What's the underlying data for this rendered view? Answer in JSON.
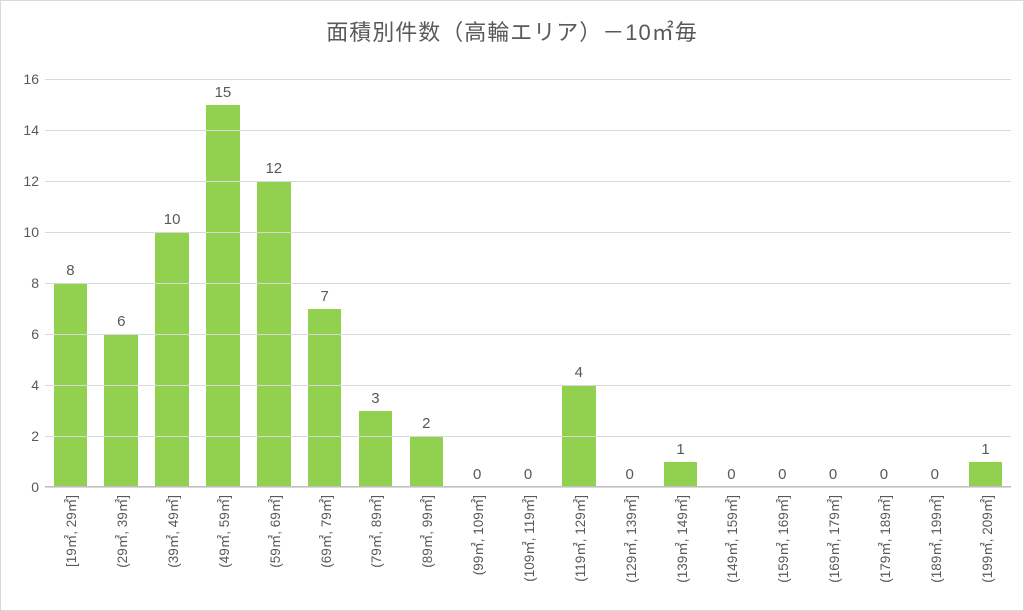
{
  "chart": {
    "type": "bar",
    "title": "面積別件数（高輪エリア）－10㎡毎",
    "title_fontsize": 22,
    "title_color": "#595959",
    "background_color": "#ffffff",
    "border_color": "#d9d9d9",
    "bar_color": "#92d050",
    "grid_color": "#d9d9d9",
    "axis_color": "#bfbfbf",
    "label_color": "#595959",
    "label_fontsize": 14,
    "value_label_fontsize": 15,
    "xtick_fontsize": 13.5,
    "xtick_rotation_deg": -90,
    "bar_width_ratio": 0.66,
    "ylim": [
      0,
      16
    ],
    "ytick_step": 2,
    "yticks": [
      0,
      2,
      4,
      6,
      8,
      10,
      12,
      14,
      16
    ],
    "categories": [
      "[19㎡, 29㎡]",
      "(29㎡, 39㎡]",
      "(39㎡, 49㎡]",
      "(49㎡, 59㎡]",
      "(59㎡, 69㎡]",
      "(69㎡, 79㎡]",
      "(79㎡, 89㎡]",
      "(89㎡, 99㎡]",
      "(99㎡, 109㎡]",
      "(109㎡, 119㎡]",
      "(119㎡, 129㎡]",
      "(129㎡, 139㎡]",
      "(139㎡, 149㎡]",
      "(149㎡, 159㎡]",
      "(159㎡, 169㎡]",
      "(169㎡, 179㎡]",
      "(179㎡, 189㎡]",
      "(189㎡, 199㎡]",
      "(199㎡, 209㎡]"
    ],
    "values": [
      8,
      6,
      10,
      15,
      12,
      7,
      3,
      2,
      0,
      0,
      4,
      0,
      1,
      0,
      0,
      0,
      0,
      0,
      1
    ]
  }
}
